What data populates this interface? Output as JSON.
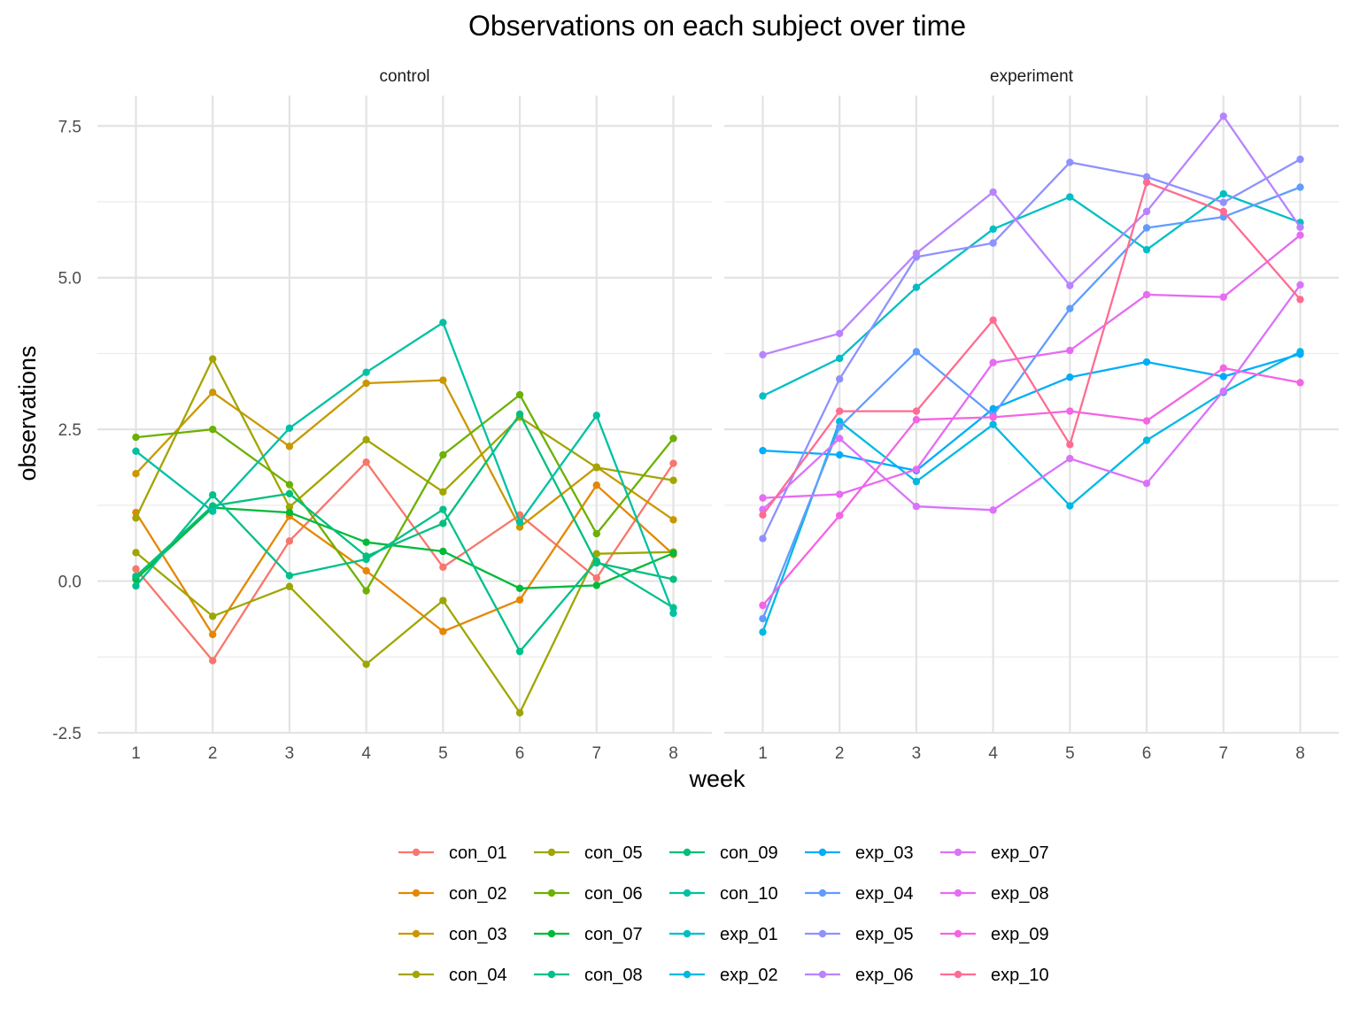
{
  "chart_data": {
    "type": "line",
    "title": "Observations on each subject over time",
    "xlabel": "week",
    "ylabel": "observations",
    "x": [
      1,
      2,
      3,
      4,
      5,
      6,
      7,
      8
    ],
    "x_ticks": [
      "1",
      "2",
      "3",
      "4",
      "5",
      "6",
      "7",
      "8"
    ],
    "ylim": [
      -2.5,
      8.0
    ],
    "y_ticks": [
      -2.5,
      0.0,
      2.5,
      5.0,
      7.5
    ],
    "y_tick_labels": [
      "-2.5",
      "0.0",
      "2.5",
      "5.0",
      "7.5"
    ],
    "grid": true,
    "legend_position": "bottom",
    "panels": [
      {
        "label": "control",
        "series": [
          {
            "name": "con_01",
            "color": "#F8766D",
            "values": [
              0.2,
              -1.31,
              0.66,
              1.96,
              0.23,
              1.09,
              0.05,
              1.94
            ]
          },
          {
            "name": "con_02",
            "color": "#E58700",
            "values": [
              1.13,
              -0.88,
              1.07,
              0.17,
              -0.83,
              -0.31,
              1.58,
              0.44
            ]
          },
          {
            "name": "con_03",
            "color": "#C99800",
            "values": [
              1.77,
              3.11,
              2.22,
              3.26,
              3.31,
              0.89,
              1.88,
              1.01
            ]
          },
          {
            "name": "con_04",
            "color": "#A3A500",
            "values": [
              1.04,
              3.66,
              1.22,
              2.33,
              1.47,
              2.7,
              1.87,
              1.66
            ]
          },
          {
            "name": "con_05",
            "color": "#9DA700",
            "values": [
              0.47,
              -0.58,
              -0.09,
              -1.37,
              -0.32,
              -2.17,
              0.45,
              0.48
            ]
          },
          {
            "name": "con_06",
            "color": "#6BB100",
            "values": [
              2.37,
              2.5,
              1.59,
              -0.16,
              2.08,
              3.07,
              0.78,
              2.35
            ]
          },
          {
            "name": "con_07",
            "color": "#00BA38",
            "values": [
              0.03,
              1.21,
              1.13,
              0.64,
              0.49,
              -0.12,
              -0.07,
              0.46
            ]
          },
          {
            "name": "con_08",
            "color": "#00C08B",
            "values": [
              -0.08,
              1.42,
              0.09,
              0.36,
              1.18,
              -1.16,
              0.33,
              -0.44
            ]
          },
          {
            "name": "con_09",
            "color": "#00BF7D",
            "values": [
              0.08,
              1.24,
              1.44,
              0.41,
              0.95,
              2.75,
              0.3,
              0.03
            ]
          },
          {
            "name": "con_10",
            "color": "#00C1A3",
            "values": [
              2.14,
              1.15,
              2.52,
              3.44,
              4.26,
              0.97,
              2.73,
              -0.53
            ]
          }
        ]
      },
      {
        "label": "experiment",
        "series": [
          {
            "name": "exp_01",
            "color": "#00BFC4",
            "values": [
              3.05,
              3.67,
              4.84,
              5.8,
              6.33,
              5.46,
              6.38,
              5.91
            ]
          },
          {
            "name": "exp_02",
            "color": "#00B9E3",
            "values": [
              -0.84,
              2.63,
              1.64,
              2.58,
              1.24,
              2.32,
              3.11,
              3.78
            ]
          },
          {
            "name": "exp_03",
            "color": "#00ADFA",
            "values": [
              2.15,
              2.08,
              1.82,
              2.84,
              3.36,
              3.61,
              3.37,
              3.74
            ]
          },
          {
            "name": "exp_04",
            "color": "#619CFF",
            "values": [
              -0.62,
              2.54,
              3.78,
              2.73,
              4.49,
              5.82,
              6.0,
              6.49
            ]
          },
          {
            "name": "exp_05",
            "color": "#8F91FF",
            "values": [
              0.7,
              3.33,
              5.34,
              5.57,
              6.9,
              6.66,
              6.24,
              6.95
            ]
          },
          {
            "name": "exp_06",
            "color": "#B983FF",
            "values": [
              3.73,
              4.08,
              5.4,
              6.41,
              4.87,
              6.09,
              7.66,
              5.83
            ]
          },
          {
            "name": "exp_07",
            "color": "#DB72FB",
            "values": [
              1.18,
              2.35,
              1.23,
              1.17,
              2.02,
              1.61,
              3.13,
              4.88
            ]
          },
          {
            "name": "exp_08",
            "color": "#E76BF3",
            "values": [
              1.37,
              1.43,
              1.84,
              3.6,
              3.8,
              4.72,
              4.68,
              5.7
            ]
          },
          {
            "name": "exp_09",
            "color": "#F564E3",
            "values": [
              -0.4,
              1.08,
              2.66,
              2.7,
              2.8,
              2.64,
              3.51,
              3.27
            ]
          },
          {
            "name": "exp_10",
            "color": "#FF6C91",
            "values": [
              1.09,
              2.8,
              2.8,
              4.3,
              2.25,
              6.57,
              6.09,
              4.64
            ]
          }
        ]
      }
    ]
  }
}
